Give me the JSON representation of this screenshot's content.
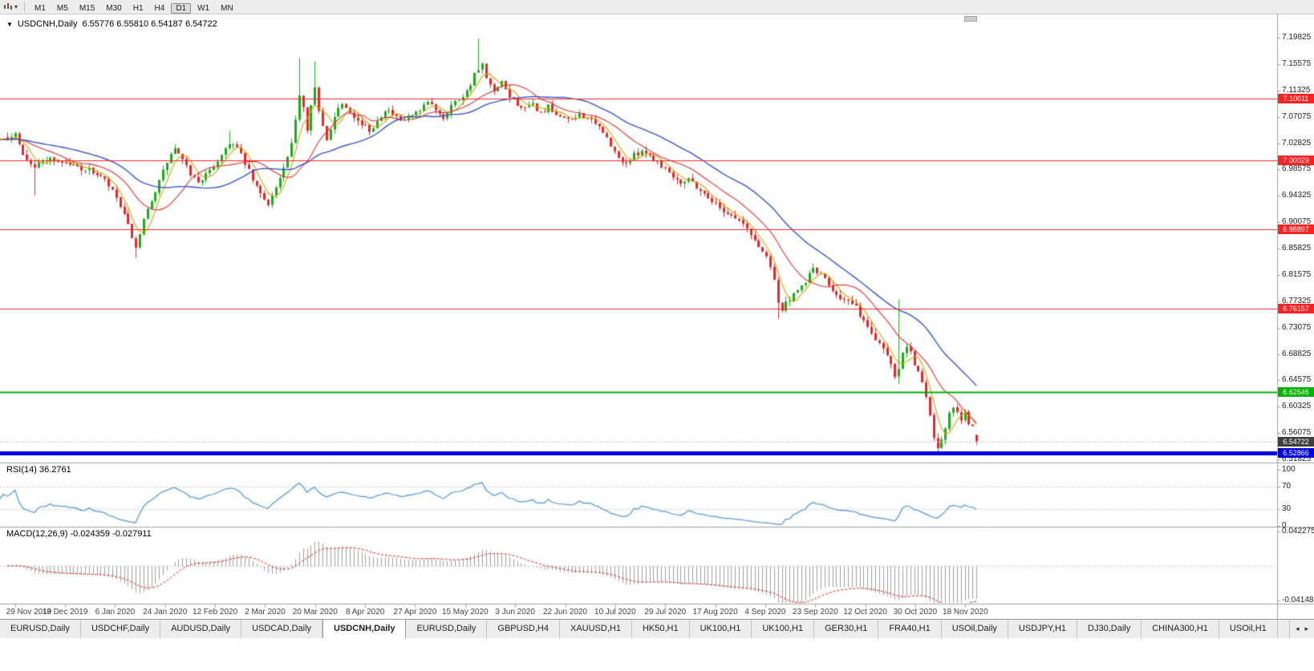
{
  "toolbar": {
    "timeframes": [
      "M1",
      "M5",
      "M15",
      "M30",
      "H1",
      "H4",
      "D1",
      "W1",
      "MN"
    ],
    "active": "D1"
  },
  "header": {
    "arrow": "▼",
    "symbol": "USDCNH,Daily",
    "ohlc": "6.55776 6.55810 6.54187 6.54722"
  },
  "indicator_labels": {
    "rsi": "RSI(14) 36.2761",
    "macd": "MACD(12,26,9) -0.024359 -0.027911"
  },
  "tabs": {
    "items": [
      "EURUSD,Daily",
      "USDCHF,Daily",
      "AUDUSD,Daily",
      "USDCAD,Daily",
      "USDCNH,Daily",
      "EURUSD,Daily",
      "GBPUSD,H4",
      "XAUUSD,H1",
      "HK50,H1",
      "UK100,H1",
      "UK100,H1",
      "GER30,H1",
      "FRA40,H1",
      "USOil,Daily",
      "USDJPY,H1",
      "DJ30,Daily",
      "CHINA300,H1",
      "USOil,H1"
    ],
    "active_index": 4,
    "scroll_left": "◂",
    "scroll_right": "▸"
  },
  "chart_data": {
    "type": "candlestick",
    "symbol": "USDCNH",
    "timeframe": "Daily",
    "bars": 250,
    "y_ticks": [
      "7.19825",
      "7.15575",
      "7.11325",
      "7.07075",
      "7.02825",
      "6.98575",
      "6.94325",
      "6.90075",
      "6.85825",
      "6.81575",
      "6.77325",
      "6.73075",
      "6.68825",
      "6.64575",
      "6.60325",
      "6.56075",
      "6.51825"
    ],
    "y_range": [
      6.51825,
      7.19825
    ],
    "x_ticks": [
      "29 Nov 2019",
      "18 Dec 2019",
      "6 Jan 2020",
      "24 Jan 2020",
      "12 Feb 2020",
      "2 Mar 2020",
      "20 Mar 2020",
      "8 Apr 2020",
      "27 Apr 2020",
      "15 May 2020",
      "3 Jun 2020",
      "22 Jun 2020",
      "10 Jul 2020",
      "29 Jul 2020",
      "17 Aug 2020",
      "4 Sep 2020",
      "23 Sep 2020",
      "12 Oct 2020",
      "30 Oct 2020",
      "18 Nov 2020"
    ],
    "x_tick_first_bar": 2,
    "x_tick_interval_bars": 12.85,
    "last_ohlc": {
      "open": 6.55776,
      "high": 6.5581,
      "low": 6.54187,
      "close": 6.54722
    },
    "close_anchors": [
      [
        0,
        7.034
      ],
      [
        2,
        7.047
      ],
      [
        4,
        7.012
      ],
      [
        7,
        6.99
      ],
      [
        10,
        7.004
      ],
      [
        14,
        6.998
      ],
      [
        18,
        6.99
      ],
      [
        22,
        6.982
      ],
      [
        25,
        6.968
      ],
      [
        28,
        6.94
      ],
      [
        30,
        6.91
      ],
      [
        32,
        6.878
      ],
      [
        33,
        6.856
      ],
      [
        35,
        6.902
      ],
      [
        37,
        6.938
      ],
      [
        39,
        6.966
      ],
      [
        41,
        6.998
      ],
      [
        43,
        7.02
      ],
      [
        45,
        6.999
      ],
      [
        47,
        6.979
      ],
      [
        49,
        6.966
      ],
      [
        52,
        6.982
      ],
      [
        55,
        7.01
      ],
      [
        57,
        7.03
      ],
      [
        59,
        7.02
      ],
      [
        61,
        6.996
      ],
      [
        63,
        6.968
      ],
      [
        65,
        6.946
      ],
      [
        67,
        6.932
      ],
      [
        69,
        6.956
      ],
      [
        71,
        6.986
      ],
      [
        73,
        7.024
      ],
      [
        74,
        7.064
      ],
      [
        75,
        7.108
      ],
      [
        76,
        7.088
      ],
      [
        77,
        7.052
      ],
      [
        78,
        7.094
      ],
      [
        79,
        7.118
      ],
      [
        80,
        7.078
      ],
      [
        81,
        7.054
      ],
      [
        82,
        7.032
      ],
      [
        84,
        7.074
      ],
      [
        86,
        7.094
      ],
      [
        88,
        7.082
      ],
      [
        90,
        7.064
      ],
      [
        93,
        7.048
      ],
      [
        95,
        7.064
      ],
      [
        97,
        7.084
      ],
      [
        99,
        7.074
      ],
      [
        101,
        7.062
      ],
      [
        103,
        7.07
      ],
      [
        106,
        7.078
      ],
      [
        108,
        7.094
      ],
      [
        110,
        7.084
      ],
      [
        112,
        7.07
      ],
      [
        114,
        7.09
      ],
      [
        116,
        7.1
      ],
      [
        118,
        7.112
      ],
      [
        120,
        7.138
      ],
      [
        122,
        7.154
      ],
      [
        123,
        7.13
      ],
      [
        125,
        7.11
      ],
      [
        127,
        7.124
      ],
      [
        129,
        7.104
      ],
      [
        131,
        7.092
      ],
      [
        133,
        7.082
      ],
      [
        135,
        7.09
      ],
      [
        137,
        7.076
      ],
      [
        139,
        7.086
      ],
      [
        141,
        7.07
      ],
      [
        143,
        7.072
      ],
      [
        145,
        7.062
      ],
      [
        147,
        7.076
      ],
      [
        149,
        7.068
      ],
      [
        151,
        7.058
      ],
      [
        153,
        7.048
      ],
      [
        155,
        7.022
      ],
      [
        157,
        7.004
      ],
      [
        159,
        6.996
      ],
      [
        161,
        7.008
      ],
      [
        163,
        7.018
      ],
      [
        165,
        7.008
      ],
      [
        167,
        6.998
      ],
      [
        169,
        6.988
      ],
      [
        171,
        6.976
      ],
      [
        173,
        6.966
      ],
      [
        175,
        6.972
      ],
      [
        177,
        6.958
      ],
      [
        179,
        6.946
      ],
      [
        181,
        6.936
      ],
      [
        183,
        6.924
      ],
      [
        185,
        6.916
      ],
      [
        187,
        6.908
      ],
      [
        189,
        6.898
      ],
      [
        191,
        6.88
      ],
      [
        193,
        6.862
      ],
      [
        195,
        6.845
      ],
      [
        196,
        6.832
      ],
      [
        197,
        6.81
      ],
      [
        198,
        6.772
      ],
      [
        199,
        6.758
      ],
      [
        200,
        6.77
      ],
      [
        202,
        6.782
      ],
      [
        204,
        6.796
      ],
      [
        206,
        6.816
      ],
      [
        207,
        6.828
      ],
      [
        208,
        6.82
      ],
      [
        210,
        6.808
      ],
      [
        212,
        6.792
      ],
      [
        214,
        6.78
      ],
      [
        216,
        6.772
      ],
      [
        218,
        6.762
      ],
      [
        220,
        6.742
      ],
      [
        221,
        6.73
      ],
      [
        223,
        6.714
      ],
      [
        225,
        6.7
      ],
      [
        227,
        6.672
      ],
      [
        228,
        6.655
      ],
      [
        229,
        6.668
      ],
      [
        230,
        6.692
      ],
      [
        231,
        6.704
      ],
      [
        232,
        6.694
      ],
      [
        233,
        6.672
      ],
      [
        234,
        6.66
      ],
      [
        235,
        6.64
      ],
      [
        236,
        6.618
      ],
      [
        237,
        6.586
      ],
      [
        238,
        6.556
      ],
      [
        239,
        6.536
      ],
      [
        240,
        6.552
      ],
      [
        241,
        6.57
      ],
      [
        242,
        6.59
      ],
      [
        243,
        6.602
      ],
      [
        244,
        6.594
      ],
      [
        245,
        6.58
      ],
      [
        246,
        6.59
      ],
      [
        247,
        6.578
      ],
      [
        248,
        6.57
      ],
      [
        249,
        6.5472
      ]
    ],
    "bar_events": [
      {
        "i": 7,
        "l": 6.944
      },
      {
        "i": 33,
        "l": 6.843
      },
      {
        "i": 57,
        "h": 7.048
      },
      {
        "i": 75,
        "h": 7.165
      },
      {
        "i": 79,
        "h": 7.16
      },
      {
        "i": 121,
        "h": 7.1966
      },
      {
        "i": 198,
        "l": 6.745
      },
      {
        "i": 229,
        "h": 6.776,
        "l": 6.64
      },
      {
        "i": 239,
        "l": 6.5262
      },
      {
        "i": 249,
        "o": 6.55776,
        "h": 6.5581,
        "l": 6.54187,
        "c": 6.54722
      }
    ],
    "candle_colors": {
      "up": "#1daa1d",
      "down": "#e22828"
    },
    "moving_averages": [
      {
        "period": 5,
        "color": "#c9a400"
      },
      {
        "period": 14,
        "color": "#e03030"
      },
      {
        "period": 30,
        "color": "#3355cc"
      }
    ],
    "levels": [
      {
        "price": 7.10011,
        "label": "7.10011",
        "color": "#ff2222",
        "width": 1
      },
      {
        "price": 7.00029,
        "label": "7.00029",
        "color": "#ff2222",
        "width": 1
      },
      {
        "price": 6.88897,
        "label": "6.88897",
        "color": "#ff2222",
        "width": 1
      },
      {
        "price": 6.76157,
        "label": "6.76157",
        "color": "#ff2222",
        "width": 1
      },
      {
        "price": 6.62646,
        "label": "6.62646",
        "color": "#00b400",
        "width": 2
      },
      {
        "price": 6.52866,
        "label": "6.52866",
        "color": "#0000e0",
        "width": 5
      }
    ],
    "current_price": {
      "value": 6.54722,
      "label": "6.54722",
      "tag_color": "#3f3f3f"
    },
    "rsi": {
      "period": 14,
      "value": 36.2761,
      "scale_labels": [
        "100",
        "70",
        "30",
        "0"
      ],
      "guide_levels": [
        70,
        30
      ],
      "range": [
        0,
        100
      ],
      "color": "#4a94d8"
    },
    "macd": {
      "fast": 12,
      "slow": 26,
      "signal": 9,
      "value": -0.024359,
      "signal_value": -0.027911,
      "scale_top": 0.042275,
      "scale_bottom": -0.04148,
      "histogram_color": "#9e9e9e",
      "signal_color": "#dd2222"
    }
  }
}
